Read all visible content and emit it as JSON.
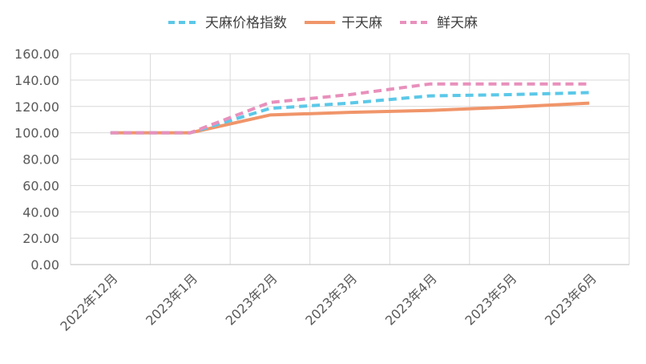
{
  "chart_data": {
    "type": "line",
    "categories": [
      "2022年12月",
      "2023年1月",
      "2023年2月",
      "2023年3月",
      "2023年4月",
      "2023年5月",
      "2023年6月"
    ],
    "series": [
      {
        "name": "天麻价格指数",
        "color": "#5bc8e8",
        "dash": "dashed",
        "values": [
          100.0,
          100.0,
          118.5,
          122.5,
          128.0,
          129.0,
          130.5
        ]
      },
      {
        "name": "干天麻",
        "color": "#f0956a",
        "dash": "solid",
        "values": [
          100.0,
          100.0,
          113.5,
          115.5,
          117.0,
          119.5,
          122.5
        ]
      },
      {
        "name": "鲜天麻",
        "color": "#e890bc",
        "dash": "dashed",
        "values": [
          100.0,
          100.0,
          123.0,
          129.0,
          137.0,
          137.0,
          137.0
        ]
      }
    ],
    "y_ticks": [
      "0.00",
      "20.00",
      "40.00",
      "60.00",
      "80.00",
      "100.00",
      "120.00",
      "140.00",
      "160.00"
    ],
    "ylim": [
      0,
      160
    ],
    "grid": true,
    "legend_position": "top-center",
    "title": "",
    "xlabel": "",
    "ylabel": ""
  }
}
